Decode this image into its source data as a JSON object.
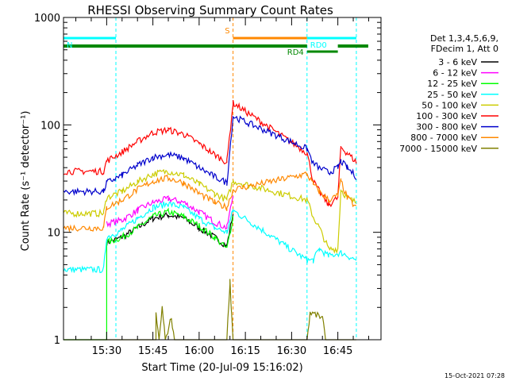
{
  "chart_data": {
    "type": "line",
    "title": "RHESSI Observing Summary Count Rates",
    "xlabel": "Start Time (20-Jul-09 15:16:02)",
    "ylabel": "Count Rate (s⁻¹ detector⁻¹)",
    "yscale": "log",
    "ylim": [
      1,
      1000
    ],
    "xlim": [
      "15:16",
      "16:59"
    ],
    "y_ticks": [
      {
        "value": 1,
        "label": "1"
      },
      {
        "value": 10,
        "label": "10"
      },
      {
        "value": 100,
        "label": "100"
      },
      {
        "value": 1000,
        "label": "1000"
      }
    ],
    "x_ticks": [
      {
        "value": "15:30",
        "label": "15:30"
      },
      {
        "value": "15:45",
        "label": "15:45"
      },
      {
        "value": "16:00",
        "label": "16:00"
      },
      {
        "value": "16:15",
        "label": "16:15"
      },
      {
        "value": "16:30",
        "label": "16:30"
      },
      {
        "value": "16:45",
        "label": "16:45"
      }
    ],
    "legend_position": "right",
    "legend_header": [
      "Det 1,3,4,5,6,9,",
      "FDecim 1, Att 0"
    ],
    "series": [
      {
        "name": "3 - 6 keV",
        "color": "#000000",
        "points": [
          [
            "15:30",
            8
          ],
          [
            "15:35",
            9
          ],
          [
            "15:40",
            11
          ],
          [
            "15:45",
            13.5
          ],
          [
            "15:50",
            14.5
          ],
          [
            "15:55",
            13.5
          ],
          [
            "16:00",
            11
          ],
          [
            "16:05",
            9
          ],
          [
            "16:09",
            7.5
          ],
          [
            "16:11",
            15
          ]
        ]
      },
      {
        "name": "6 - 12 keV",
        "color": "#ff00ff",
        "points": [
          [
            "15:30",
            12
          ],
          [
            "15:35",
            13
          ],
          [
            "15:40",
            16
          ],
          [
            "15:45",
            19
          ],
          [
            "15:50",
            20.5
          ],
          [
            "15:55",
            19
          ],
          [
            "16:00",
            15.5
          ],
          [
            "16:05",
            12.5
          ],
          [
            "16:09",
            11
          ],
          [
            "16:11",
            22
          ]
        ]
      },
      {
        "name": "12 - 25 keV",
        "color": "#00ff00",
        "points": [
          [
            "15:16",
            1
          ],
          [
            "15:30",
            1
          ],
          [
            "15:30",
            8
          ],
          [
            "15:35",
            9
          ],
          [
            "15:40",
            11
          ],
          [
            "15:45",
            14
          ],
          [
            "15:50",
            15.5
          ],
          [
            "15:55",
            14
          ],
          [
            "16:00",
            11.5
          ],
          [
            "16:05",
            9
          ],
          [
            "16:09",
            7
          ],
          [
            "16:11",
            14
          ]
        ]
      },
      {
        "name": "25 - 50 keV",
        "color": "#00ffff",
        "points": [
          [
            "15:16",
            4.5
          ],
          [
            "15:29",
            4.5
          ],
          [
            "15:30",
            9
          ],
          [
            "15:35",
            10.5
          ],
          [
            "15:40",
            13.5
          ],
          [
            "15:45",
            17
          ],
          [
            "15:50",
            18.5
          ],
          [
            "15:55",
            17
          ],
          [
            "16:00",
            13.5
          ],
          [
            "16:05",
            11
          ],
          [
            "16:09",
            10
          ],
          [
            "16:11",
            16
          ],
          [
            "16:35",
            5.5
          ],
          [
            "16:37",
            5.5
          ],
          [
            "16:39",
            7
          ],
          [
            "16:42",
            6
          ],
          [
            "16:46",
            6.5
          ],
          [
            "16:51",
            5.5
          ]
        ]
      },
      {
        "name": "50 - 100 keV",
        "color": "#cccc00",
        "points": [
          [
            "15:16",
            15
          ],
          [
            "15:29",
            15
          ],
          [
            "15:30",
            21
          ],
          [
            "15:35",
            24
          ],
          [
            "15:40",
            29.5
          ],
          [
            "15:45",
            35
          ],
          [
            "15:50",
            37
          ],
          [
            "15:55",
            34
          ],
          [
            "16:00",
            28
          ],
          [
            "16:05",
            23
          ],
          [
            "16:09",
            20
          ],
          [
            "16:11",
            30
          ],
          [
            "16:35",
            20
          ],
          [
            "16:37",
            14
          ],
          [
            "16:39",
            11
          ],
          [
            "16:42",
            7
          ],
          [
            "16:45",
            7
          ],
          [
            "16:46",
            25
          ],
          [
            "16:48",
            21
          ],
          [
            "16:51",
            19
          ]
        ]
      },
      {
        "name": "100 - 300 keV",
        "color": "#ff0000",
        "points": [
          [
            "15:16",
            37
          ],
          [
            "15:29",
            37
          ],
          [
            "15:30",
            46
          ],
          [
            "15:35",
            56
          ],
          [
            "15:40",
            70
          ],
          [
            "15:45",
            85
          ],
          [
            "15:50",
            90
          ],
          [
            "15:55",
            82
          ],
          [
            "16:00",
            67
          ],
          [
            "16:05",
            53
          ],
          [
            "16:09",
            45
          ],
          [
            "16:11",
            160
          ],
          [
            "16:35",
            55
          ],
          [
            "16:37",
            30
          ],
          [
            "16:39",
            24
          ],
          [
            "16:42",
            18
          ],
          [
            "16:45",
            21
          ],
          [
            "16:46",
            62
          ],
          [
            "16:48",
            55
          ],
          [
            "16:51",
            45
          ]
        ]
      },
      {
        "name": "300 - 800 keV",
        "color": "#0000cc",
        "points": [
          [
            "15:16",
            24
          ],
          [
            "15:29",
            24
          ],
          [
            "15:30",
            29
          ],
          [
            "15:35",
            34
          ],
          [
            "15:40",
            42
          ],
          [
            "15:45",
            50
          ],
          [
            "15:50",
            53
          ],
          [
            "15:55",
            49
          ],
          [
            "16:00",
            40
          ],
          [
            "16:05",
            33
          ],
          [
            "16:09",
            29
          ],
          [
            "16:11",
            120
          ],
          [
            "16:35",
            60
          ],
          [
            "16:37",
            44
          ],
          [
            "16:39",
            40
          ],
          [
            "16:42",
            36
          ],
          [
            "16:45",
            40
          ],
          [
            "16:46",
            46
          ],
          [
            "16:48",
            40
          ],
          [
            "16:51",
            33
          ]
        ]
      },
      {
        "name": "800 - 7000 keV",
        "color": "#ff8800",
        "points": [
          [
            "15:16",
            11
          ],
          [
            "15:29",
            11
          ],
          [
            "15:30",
            17
          ],
          [
            "15:35",
            20
          ],
          [
            "15:40",
            25
          ],
          [
            "15:45",
            30
          ],
          [
            "15:50",
            32
          ],
          [
            "15:55",
            29
          ],
          [
            "16:00",
            23
          ],
          [
            "16:05",
            19
          ],
          [
            "16:09",
            17
          ],
          [
            "16:11",
            25
          ],
          [
            "16:35",
            35
          ],
          [
            "16:37",
            28
          ],
          [
            "16:39",
            24
          ],
          [
            "16:42",
            20
          ],
          [
            "16:45",
            22
          ],
          [
            "16:46",
            30
          ],
          [
            "16:48",
            21
          ],
          [
            "16:51",
            17
          ]
        ]
      },
      {
        "name": "7000 - 15000 keV",
        "color": "#808000",
        "points": [
          [
            "15:16",
            1
          ],
          [
            "15:46",
            1
          ],
          [
            "15:46",
            1.7
          ],
          [
            "15:47",
            1
          ],
          [
            "15:48",
            2
          ],
          [
            "15:49",
            1
          ],
          [
            "15:51",
            1.6
          ],
          [
            "15:52",
            1
          ],
          [
            "16:09",
            1
          ],
          [
            "16:10",
            3.5
          ],
          [
            "16:11",
            1
          ],
          [
            "16:35",
            1
          ],
          [
            "16:36",
            1.8
          ],
          [
            "16:40",
            1.6
          ],
          [
            "16:41",
            1
          ],
          [
            "16:51",
            1
          ]
        ]
      }
    ],
    "annotations": [
      {
        "label": "N",
        "color": "#00ffff",
        "bar_start": "15:16",
        "bar_end": "15:33",
        "level": "upper"
      },
      {
        "label": "S",
        "color": "#ff8800",
        "bar_start": "16:11",
        "bar_end": "16:35",
        "level": "upper"
      },
      {
        "label": "RD0",
        "color": "#00ffff",
        "bar_start": "16:35",
        "bar_end": "16:51",
        "level": "upper"
      },
      {
        "label": "RD4",
        "color": "#008800",
        "bar_start": "16:35",
        "bar_end": "16:45",
        "level": "lower"
      }
    ],
    "baseline_bar": {
      "color": "#008800",
      "start": "15:16",
      "end": "16:51"
    },
    "vertical_markers": [
      {
        "time": "15:33",
        "color": "#00ffff"
      },
      {
        "time": "16:11",
        "color": "#ff8800"
      },
      {
        "time": "16:35",
        "color": "#00ffff"
      },
      {
        "time": "16:51",
        "color": "#00ffff"
      }
    ]
  },
  "footer": {
    "timestamp": "15-Oct-2021 07:28"
  }
}
